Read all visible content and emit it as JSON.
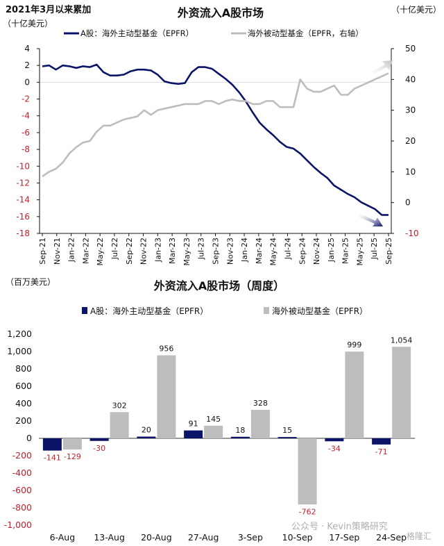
{
  "colors": {
    "active": "#0b1466",
    "passive": "#bdbdbd",
    "negative_label": "#c0202a",
    "axis": "#111111",
    "grid": "#dddddd"
  },
  "header": {
    "top_left_note": "2021年3月以来累加",
    "left_unit": "（十亿美元）",
    "right_unit": "（十亿美元）"
  },
  "chart_data": [
    {
      "type": "line",
      "title": "外资流入A股市场",
      "y_left": {
        "label": "（十亿美元）",
        "ylim": [
          -18,
          4
        ],
        "ticks": [
          4,
          2,
          0,
          -2,
          -4,
          -6,
          -8,
          -10,
          -12,
          -14,
          -16,
          -18
        ]
      },
      "y_right": {
        "label": "（十亿美元）",
        "ylim": [
          -10,
          50
        ],
        "ticks": [
          50,
          40,
          30,
          20,
          10,
          0,
          -10
        ]
      },
      "x_ticks": [
        "Sep-21",
        "Nov-21",
        "Jan-22",
        "Mar-22",
        "May-22",
        "Jul-22",
        "Sep-22",
        "Nov-22",
        "Jan-23",
        "Mar-23",
        "May-23",
        "Jul-23",
        "Sep-23",
        "Nov-23",
        "Jan-24",
        "Mar-24",
        "May-24",
        "Jul-24",
        "Sep-24",
        "Nov-24",
        "Jan-25",
        "Mar-25",
        "May-25",
        "Jul-25",
        "Sep-25"
      ],
      "series": [
        {
          "name": "A股：海外主动型基金（EPFR）",
          "axis": "left",
          "values": [
            1.9,
            2.0,
            1.5,
            2.0,
            1.9,
            1.7,
            1.9,
            1.8,
            2.1,
            1.2,
            0.8,
            0.8,
            0.9,
            1.3,
            1.5,
            1.5,
            1.4,
            0.9,
            0.1,
            -0.1,
            -0.2,
            -0.1,
            1.2,
            1.8,
            1.8,
            1.6,
            1.0,
            0.4,
            -0.3,
            -1.2,
            -2.3,
            -3.6,
            -4.8,
            -5.6,
            -6.3,
            -7.1,
            -7.7,
            -7.9,
            -8.5,
            -9.3,
            -10.1,
            -10.8,
            -11.4,
            -12.3,
            -12.8,
            -13.3,
            -13.7,
            -14.3,
            -14.7,
            -15.1,
            -15.8,
            -15.8
          ]
        },
        {
          "name": "海外被动型基金（EPFR，右轴）",
          "axis": "right",
          "values": [
            8.5,
            10,
            11,
            13,
            16,
            18,
            19.5,
            20,
            23,
            25,
            25,
            26,
            27,
            27.5,
            28,
            30,
            28.5,
            30,
            30.5,
            31,
            31.5,
            32,
            32,
            32,
            33,
            33,
            32,
            33,
            33.5,
            33,
            33,
            32,
            32,
            33,
            33,
            31,
            31,
            31,
            40,
            37,
            36,
            36,
            37,
            38,
            35,
            35,
            37,
            38,
            39,
            40,
            41,
            42
          ]
        }
      ]
    },
    {
      "type": "bar",
      "title": "外资流入A股市场（周度）",
      "ylabel": "（百万美元）",
      "ylim": [
        -1000,
        1200
      ],
      "y_ticks": [
        "1,200",
        "1,000",
        "800",
        "600",
        "400",
        "200",
        "0",
        "-200",
        "-400",
        "-600",
        "-800",
        "-1,000"
      ],
      "categories": [
        "6-Aug",
        "13-Aug",
        "20-Aug",
        "27-Aug",
        "3-Sep",
        "10-Sep",
        "17-Sep",
        "24-Sep"
      ],
      "series": [
        {
          "name": "A股：海外主动型基金（EPFR）",
          "values": [
            -141,
            -30,
            20,
            91,
            18,
            15,
            -34,
            -71
          ]
        },
        {
          "name": "海外被动型基金（EPFR）",
          "values": [
            -129,
            302,
            956,
            145,
            328,
            -762,
            999,
            1054
          ]
        }
      ]
    }
  ],
  "watermarks": [
    "公众号 · Kevin策略研究",
    "格隆汇"
  ]
}
